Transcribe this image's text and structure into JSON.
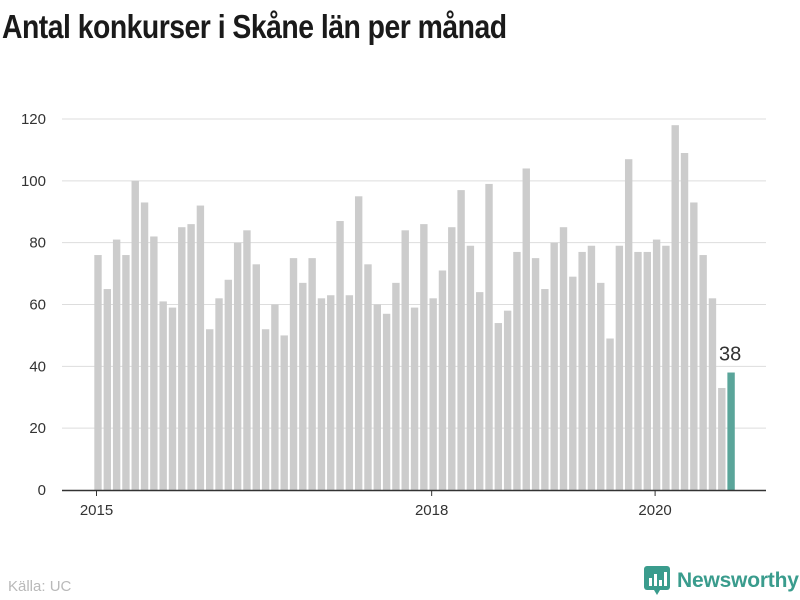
{
  "title": "Antal konkurser i Skåne län per månad",
  "source": "Källa: UC",
  "brand": {
    "name": "Newsworthy",
    "icon": "newsworthy-logo-icon",
    "color": "#3a9c8d"
  },
  "colors": {
    "bar": "#cccccc",
    "highlight": "#5aa59a",
    "grid": "#dddddd",
    "axis": "#333333"
  },
  "chart_data": {
    "type": "bar",
    "title": "Antal konkurser i Skåne län per månad",
    "xlabel": "",
    "ylabel": "",
    "ylim": [
      0,
      120
    ],
    "yticks": [
      0,
      20,
      40,
      60,
      80,
      100,
      120
    ],
    "grid": true,
    "x_start": "2015-01",
    "xticks": [
      {
        "label": "2015",
        "index": 0
      },
      {
        "label": "2018",
        "index": 36
      },
      {
        "label": "2020",
        "index": 60
      }
    ],
    "highlight": {
      "index": 68,
      "label": "38"
    },
    "values": [
      76,
      65,
      81,
      76,
      100,
      93,
      82,
      61,
      59,
      85,
      86,
      92,
      52,
      62,
      68,
      80,
      84,
      73,
      52,
      60,
      50,
      75,
      67,
      75,
      62,
      63,
      87,
      63,
      95,
      73,
      60,
      57,
      67,
      84,
      59,
      86,
      62,
      71,
      85,
      97,
      79,
      64,
      99,
      54,
      58,
      77,
      104,
      75,
      65,
      80,
      85,
      69,
      77,
      79,
      67,
      49,
      79,
      107,
      77,
      77,
      81,
      79,
      118,
      109,
      93,
      76,
      62,
      33,
      38
    ]
  }
}
